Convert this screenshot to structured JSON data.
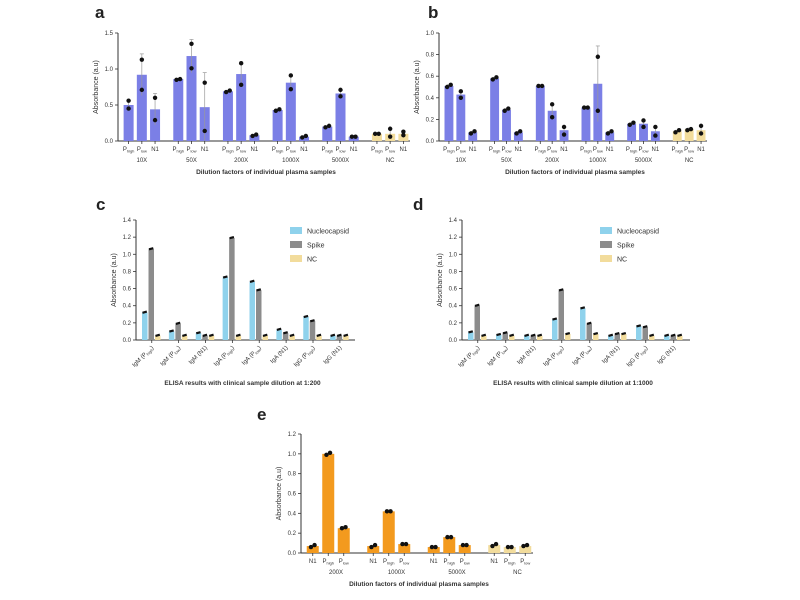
{
  "chart_data": [
    {
      "panel": "a",
      "type": "bar",
      "ylabel": "Absorbance (a.u)",
      "xlabel": "Dilution factors of individual plasma samples",
      "ylim": [
        0,
        1.5
      ],
      "yticks": [
        "0.0",
        "0.5",
        "1.0",
        "1.5"
      ],
      "groups": [
        "10X",
        "50X",
        "200X",
        "1000X",
        "5000X",
        "NC"
      ],
      "sub_labels": [
        "Phigh",
        "Plow",
        "N1"
      ],
      "colors": {
        "sample": "#7b7fe6",
        "nc": "#f2dc9c"
      },
      "values": [
        [
          0.5,
          0.92,
          0.44
        ],
        [
          0.86,
          1.18,
          0.47
        ],
        [
          0.69,
          0.93,
          0.08
        ],
        [
          0.43,
          0.81,
          0.06
        ],
        [
          0.2,
          0.66,
          0.06
        ],
        [
          0.1,
          0.1,
          0.1
        ]
      ],
      "errors": [
        [
          0.06,
          0.29,
          0.22
        ],
        [
          0.01,
          0.23,
          0.48
        ],
        [
          0.01,
          0.14,
          0.01
        ],
        [
          0.01,
          0.1,
          0.01
        ],
        [
          0.01,
          0.06,
          0.01
        ],
        [
          0.01,
          0.07,
          0.03
        ]
      ],
      "points": [
        [
          [
            0.45,
            0.56
          ],
          [
            0.71,
            1.13
          ],
          [
            0.29,
            0.6
          ]
        ],
        [
          [
            0.85,
            0.86
          ],
          [
            1.01,
            1.35
          ],
          [
            0.14,
            0.81
          ]
        ],
        [
          [
            0.68,
            0.7
          ],
          [
            0.78,
            1.08
          ],
          [
            0.07,
            0.09
          ]
        ],
        [
          [
            0.42,
            0.44
          ],
          [
            0.72,
            0.91
          ],
          [
            0.05,
            0.07
          ]
        ],
        [
          [
            0.19,
            0.21
          ],
          [
            0.62,
            0.71
          ],
          [
            0.06,
            0.06
          ]
        ],
        [
          [
            0.1,
            0.1
          ],
          [
            0.06,
            0.17
          ],
          [
            0.08,
            0.13
          ]
        ]
      ]
    },
    {
      "panel": "b",
      "type": "bar",
      "ylabel": "Absorbance (a.u)",
      "xlabel": "Dilution factors of individual plasma samples",
      "ylim": [
        0,
        1.0
      ],
      "yticks": [
        "0.0",
        "0.2",
        "0.4",
        "0.6",
        "0.8",
        "1.0"
      ],
      "groups": [
        "10X",
        "50X",
        "200X",
        "1000X",
        "5000X",
        "NC"
      ],
      "sub_labels": [
        "Phigh",
        "Plow",
        "N1"
      ],
      "colors": {
        "sample": "#7b7fe6",
        "nc": "#f2dc9c"
      },
      "values": [
        [
          0.51,
          0.43,
          0.08
        ],
        [
          0.58,
          0.29,
          0.08
        ],
        [
          0.51,
          0.28,
          0.1
        ],
        [
          0.31,
          0.53,
          0.08
        ],
        [
          0.16,
          0.16,
          0.09
        ],
        [
          0.09,
          0.11,
          0.1
        ]
      ],
      "errors": [
        [
          0.01,
          0.03,
          0.01
        ],
        [
          0.01,
          0.01,
          0.01
        ],
        [
          0.01,
          0.06,
          0.03
        ],
        [
          0.01,
          0.35,
          0.01
        ],
        [
          0.01,
          0.03,
          0.04
        ],
        [
          0.01,
          0.01,
          0.05
        ]
      ],
      "points": [
        [
          [
            0.5,
            0.52
          ],
          [
            0.4,
            0.46
          ],
          [
            0.07,
            0.09
          ]
        ],
        [
          [
            0.57,
            0.59
          ],
          [
            0.28,
            0.3
          ],
          [
            0.07,
            0.09
          ]
        ],
        [
          [
            0.51,
            0.51
          ],
          [
            0.22,
            0.34
          ],
          [
            0.06,
            0.13
          ]
        ],
        [
          [
            0.31,
            0.31
          ],
          [
            0.28,
            0.78
          ],
          [
            0.07,
            0.09
          ]
        ],
        [
          [
            0.15,
            0.17
          ],
          [
            0.13,
            0.19
          ],
          [
            0.05,
            0.13
          ]
        ],
        [
          [
            0.08,
            0.1
          ],
          [
            0.1,
            0.11
          ],
          [
            0.07,
            0.14
          ]
        ]
      ]
    },
    {
      "panel": "c",
      "type": "bar",
      "ylabel": "Absorbance (a.u)",
      "xlabel": "ELISA results with clinical sample dilution at 1:200",
      "ylim": [
        0,
        1.4
      ],
      "yticks": [
        "0.0",
        "0.2",
        "0.4",
        "0.6",
        "0.8",
        "1.0",
        "1.2",
        "1.4"
      ],
      "categories": [
        "IgM (Phigh)",
        "IgM (Plow)",
        "IgM (N1)",
        "IgA (Phigh)",
        "IgA (Plow)",
        "IgA (N1)",
        "IgG (Phigh)",
        "IgG (N1)"
      ],
      "legend": [
        "Nucleocapsid",
        "Spike",
        "NC"
      ],
      "colors": [
        "#8fd2ec",
        "#8c8c8c",
        "#f2dc9c"
      ],
      "series": [
        {
          "name": "Nucleocapsid",
          "values": [
            0.32,
            0.1,
            0.08,
            0.73,
            0.68,
            0.12,
            0.27,
            0.05
          ]
        },
        {
          "name": "Spike",
          "values": [
            1.06,
            0.19,
            0.05,
            1.19,
            0.58,
            0.08,
            0.22,
            0.05
          ]
        },
        {
          "name": "NC",
          "values": [
            0.05,
            0.05,
            0.05,
            0.05,
            0.05,
            0.05,
            0.05,
            0.05
          ]
        }
      ]
    },
    {
      "panel": "d",
      "type": "bar",
      "ylabel": "Absorbance (a.u)",
      "xlabel": "ELISA results with clinical sample dilution at 1:1000",
      "ylim": [
        0,
        1.4
      ],
      "yticks": [
        "0.0",
        "0.2",
        "0.4",
        "0.6",
        "0.8",
        "1.0",
        "1.2",
        "1.4"
      ],
      "categories": [
        "IgM (Phigh)",
        "IgM (Plow)",
        "IgM (N1)",
        "IgA (Phigh)",
        "IgA (Plow)",
        "IgA (N1)",
        "IgG (Phigh)",
        "IgG (N1)"
      ],
      "legend": [
        "Nucleocapsid",
        "Spike",
        "NC"
      ],
      "colors": [
        "#8fd2ec",
        "#8c8c8c",
        "#f2dc9c"
      ],
      "series": [
        {
          "name": "Nucleocapsid",
          "values": [
            0.09,
            0.06,
            0.05,
            0.24,
            0.37,
            0.05,
            0.16,
            0.05
          ]
        },
        {
          "name": "Spike",
          "values": [
            0.4,
            0.08,
            0.05,
            0.58,
            0.19,
            0.07,
            0.15,
            0.05
          ]
        },
        {
          "name": "NC",
          "values": [
            0.05,
            0.05,
            0.05,
            0.07,
            0.07,
            0.07,
            0.05,
            0.05
          ]
        }
      ]
    },
    {
      "panel": "e",
      "type": "bar",
      "ylabel": "Absorbance (a.u)",
      "xlabel": "Dilution factors of individual plasma samples",
      "ylim": [
        0,
        1.2
      ],
      "yticks": [
        "0.0",
        "0.2",
        "0.4",
        "0.6",
        "0.8",
        "1.0",
        "1.2"
      ],
      "groups": [
        "200X",
        "1000X",
        "5000X",
        "NC"
      ],
      "sub_labels": [
        "N1",
        "Phigh",
        "Plow"
      ],
      "colors": {
        "sample": "#f39a1e",
        "nc": "#f2dc9c"
      },
      "values": [
        [
          0.07,
          1.0,
          0.25
        ],
        [
          0.07,
          0.42,
          0.09
        ],
        [
          0.06,
          0.16,
          0.08
        ],
        [
          0.08,
          0.06,
          0.07
        ]
      ],
      "points": [
        [
          [
            0.06,
            0.08
          ],
          [
            0.99,
            1.01
          ],
          [
            0.25,
            0.26
          ]
        ],
        [
          [
            0.06,
            0.08
          ],
          [
            0.42,
            0.42
          ],
          [
            0.09,
            0.09
          ]
        ],
        [
          [
            0.06,
            0.06
          ],
          [
            0.16,
            0.16
          ],
          [
            0.08,
            0.08
          ]
        ],
        [
          [
            0.07,
            0.09
          ],
          [
            0.06,
            0.06
          ],
          [
            0.07,
            0.08
          ]
        ]
      ]
    }
  ]
}
